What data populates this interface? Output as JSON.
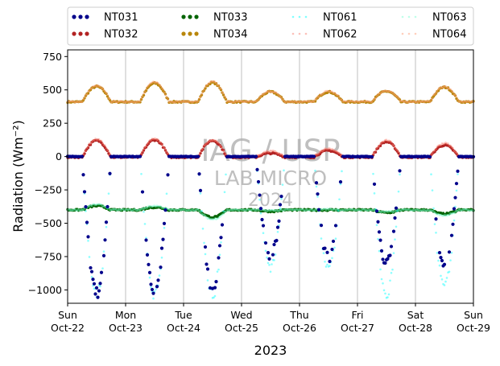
{
  "chart_data": {
    "type": "scatter",
    "xlabel": "2023",
    "ylabel": "Radiation (Wm⁻²)",
    "ylim": [
      -1100,
      800
    ],
    "yticks": [
      -1000,
      -750,
      -500,
      -250,
      0,
      250,
      500,
      750
    ],
    "ytick_labels": [
      "−1000",
      "−750",
      "−500",
      "−250",
      "0",
      "250",
      "500",
      "750"
    ],
    "xlim": [
      "2023-10-22",
      "2023-10-29"
    ],
    "xticks": [
      {
        "day": "Sun",
        "date": "Oct-22"
      },
      {
        "day": "Mon",
        "date": "Oct-23"
      },
      {
        "day": "Tue",
        "date": "Oct-24"
      },
      {
        "day": "Wed",
        "date": "Oct-25"
      },
      {
        "day": "Thu",
        "date": "Oct-26"
      },
      {
        "day": "Fri",
        "date": "Oct-27"
      },
      {
        "day": "Sat",
        "date": "Oct-28"
      },
      {
        "day": "Sun",
        "date": "Oct-29"
      }
    ],
    "grid": "vertical",
    "legend_placement": "top, outside, 4 columns",
    "watermark": [
      "IAG / USP",
      "LAB MICRO",
      "2024"
    ],
    "series": [
      {
        "name": "NT031",
        "color": "#00008b",
        "marker": "dot",
        "baseline": 0,
        "day_peak": [
          -1020,
          -1010,
          -980,
          -750,
          -760,
          -790,
          -800
        ]
      },
      {
        "name": "NT032",
        "color": "#b22222",
        "marker": "dot",
        "baseline": -5,
        "day_peak": [
          120,
          125,
          120,
          25,
          45,
          110,
          85
        ]
      },
      {
        "name": "NT033",
        "color": "#006400",
        "marker": "dot",
        "baseline": -400,
        "day_peak": [
          -370,
          -380,
          -455,
          -410,
          -400,
          -420,
          -430
        ]
      },
      {
        "name": "NT034",
        "color": "#b8860b",
        "marker": "dot",
        "baseline": 410,
        "day_peak": [
          525,
          550,
          555,
          485,
          485,
          490,
          520
        ]
      },
      {
        "name": "NT061",
        "color": "#00ffff",
        "marker": "faint",
        "baseline": 0,
        "day_peak": [
          -1030,
          -1040,
          -1040,
          -820,
          -830,
          -1040,
          -980
        ]
      },
      {
        "name": "NT062",
        "color": "#fa8072",
        "marker": "faint",
        "baseline": 0,
        "day_peak": [
          130,
          135,
          125,
          40,
          60,
          120,
          100
        ]
      },
      {
        "name": "NT063",
        "color": "#7fffd4",
        "marker": "faint",
        "baseline": -400,
        "day_peak": [
          -360,
          -370,
          -470,
          -405,
          -395,
          -415,
          -440
        ]
      },
      {
        "name": "NT064",
        "color": "#ffa07a",
        "marker": "faint",
        "baseline": 412,
        "day_peak": [
          530,
          560,
          560,
          490,
          490,
          495,
          525
        ]
      }
    ]
  }
}
